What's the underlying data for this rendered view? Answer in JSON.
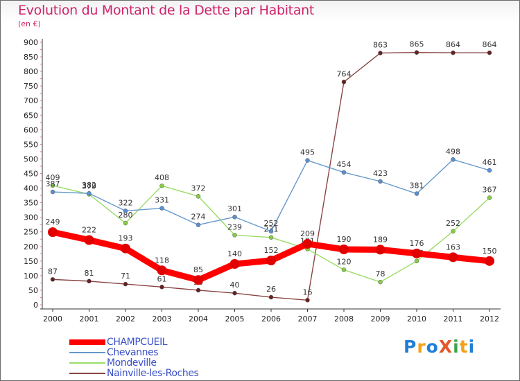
{
  "title": "Evolution du Montant de la Dette par Habitant",
  "subtitle": "(en €)",
  "logo": "ProXiti",
  "chart_data": {
    "type": "line",
    "title": "Evolution du Montant de la Dette par Habitant",
    "subtitle": "(en €)",
    "x": [
      "2000",
      "2001",
      "2002",
      "2003",
      "2004",
      "2005",
      "2006",
      "2007",
      "2008",
      "2009",
      "2010",
      "2011",
      "2012"
    ],
    "ylim": [
      0,
      900
    ],
    "yticks": [
      0,
      50,
      100,
      150,
      200,
      250,
      300,
      350,
      400,
      450,
      500,
      550,
      600,
      650,
      700,
      750,
      800,
      850,
      900
    ],
    "grid": false,
    "legend_position": "bottom-left",
    "series": [
      {
        "name": "CHAMPCUEIL",
        "color": "#ff0000",
        "marker": "#e00000",
        "values": [
          249,
          222,
          193,
          118,
          85,
          140,
          152,
          209,
          190,
          189,
          176,
          163,
          150
        ]
      },
      {
        "name": "Chevannes",
        "color": "#6699cc",
        "marker": "#5a8fd0",
        "values": [
          387,
          382,
          322,
          331,
          274,
          301,
          252,
          495,
          454,
          423,
          381,
          498,
          461
        ]
      },
      {
        "name": "Mondeville",
        "color": "#99dd66",
        "marker": "#88cc44",
        "values": [
          409,
          379,
          280,
          408,
          372,
          239,
          231,
          191,
          120,
          78,
          150,
          252,
          367
        ]
      },
      {
        "name": "Nainville-les-Roches",
        "color": "#884444",
        "marker": "#662222",
        "values": [
          87,
          81,
          71,
          61,
          50,
          40,
          26,
          16,
          764,
          863,
          865,
          864,
          864
        ]
      }
    ]
  }
}
